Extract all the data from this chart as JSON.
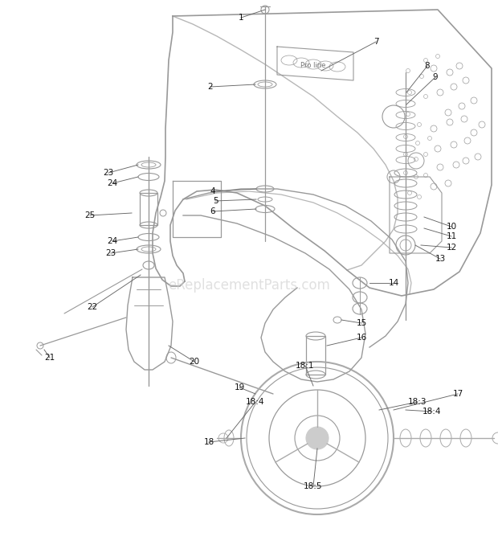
{
  "bg_color": "#ffffff",
  "line_color": "#999999",
  "dark_color": "#555555",
  "text_color": "#111111",
  "watermark": "eReplacementParts.com",
  "watermark_color": "#cccccc",
  "figsize": [
    6.2,
    6.83
  ],
  "dpi": 100
}
